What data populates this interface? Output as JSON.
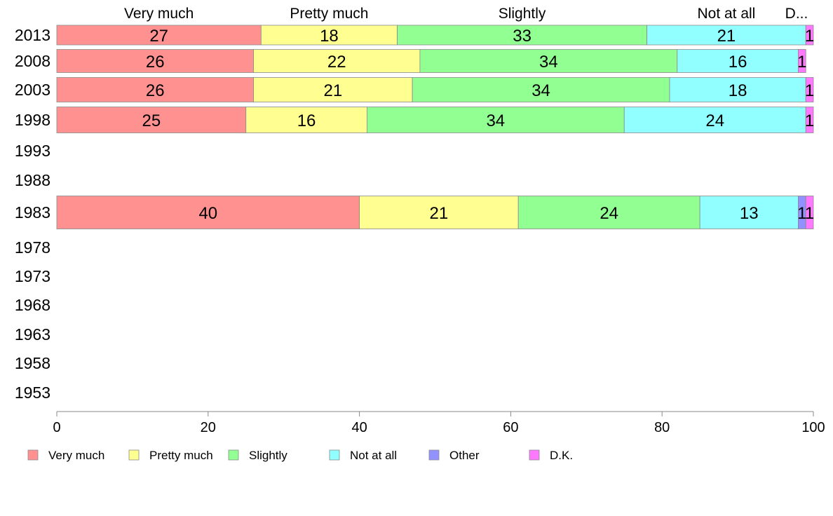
{
  "chart_data": {
    "type": "bar",
    "orientation": "horizontal",
    "stacked": true,
    "years": [
      "2013",
      "2008",
      "2003",
      "1998",
      "1993",
      "1988",
      "1983",
      "1978",
      "1973",
      "1968",
      "1963",
      "1958",
      "1953"
    ],
    "series": [
      {
        "name": "Very much",
        "color": "#ff9191",
        "values": [
          27,
          26,
          26,
          25,
          null,
          null,
          40,
          null,
          null,
          null,
          null,
          null,
          null
        ]
      },
      {
        "name": "Pretty much",
        "color": "#ffff91",
        "values": [
          18,
          22,
          21,
          16,
          null,
          null,
          21,
          null,
          null,
          null,
          null,
          null,
          null
        ]
      },
      {
        "name": "Slightly",
        "color": "#91ff91",
        "values": [
          33,
          34,
          34,
          34,
          null,
          null,
          24,
          null,
          null,
          null,
          null,
          null,
          null
        ]
      },
      {
        "name": "Not at all",
        "color": "#91ffff",
        "values": [
          21,
          16,
          18,
          24,
          null,
          null,
          13,
          null,
          null,
          null,
          null,
          null,
          null
        ]
      },
      {
        "name": "Other",
        "color": "#9191ff",
        "values": [
          0,
          0,
          0,
          0,
          null,
          null,
          1,
          null,
          null,
          null,
          null,
          null,
          null
        ]
      },
      {
        "name": "D.K.",
        "color": "#ff79ff",
        "values": [
          1,
          1,
          1,
          1,
          null,
          null,
          1,
          null,
          null,
          null,
          null,
          null,
          null
        ]
      }
    ],
    "top_labels": [
      "Very much",
      "Pretty much",
      "Slightly",
      "Not at all",
      "D.K."
    ],
    "top_label_last_display": "D...",
    "xlim": [
      0,
      100
    ],
    "xticks": [
      0,
      20,
      40,
      60,
      80,
      100
    ],
    "grid": false,
    "legend_position": "bottom"
  }
}
